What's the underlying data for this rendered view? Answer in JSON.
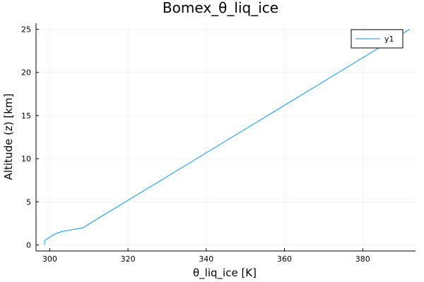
{
  "chart_data": {
    "type": "line",
    "title": "Bomex_θ_liq_ice",
    "xlabel": "θ_liq_ice [K]",
    "ylabel": "Altitude (z) [km]",
    "xlim": [
      296.5,
      393.5
    ],
    "ylim": [
      -0.7,
      25.7
    ],
    "xticks": [
      300,
      320,
      340,
      360,
      380
    ],
    "yticks": [
      0,
      5,
      10,
      15,
      20,
      25
    ],
    "grid": true,
    "legend_position": "top-right",
    "series": [
      {
        "name": "y1",
        "color": "#009AFA",
        "x": [
          298.7,
          298.7,
          300.0,
          301.5,
          303.0,
          308.5,
          392.0
        ],
        "y": [
          0.0,
          0.5,
          0.9,
          1.3,
          1.55,
          2.0,
          25.0
        ]
      }
    ]
  }
}
